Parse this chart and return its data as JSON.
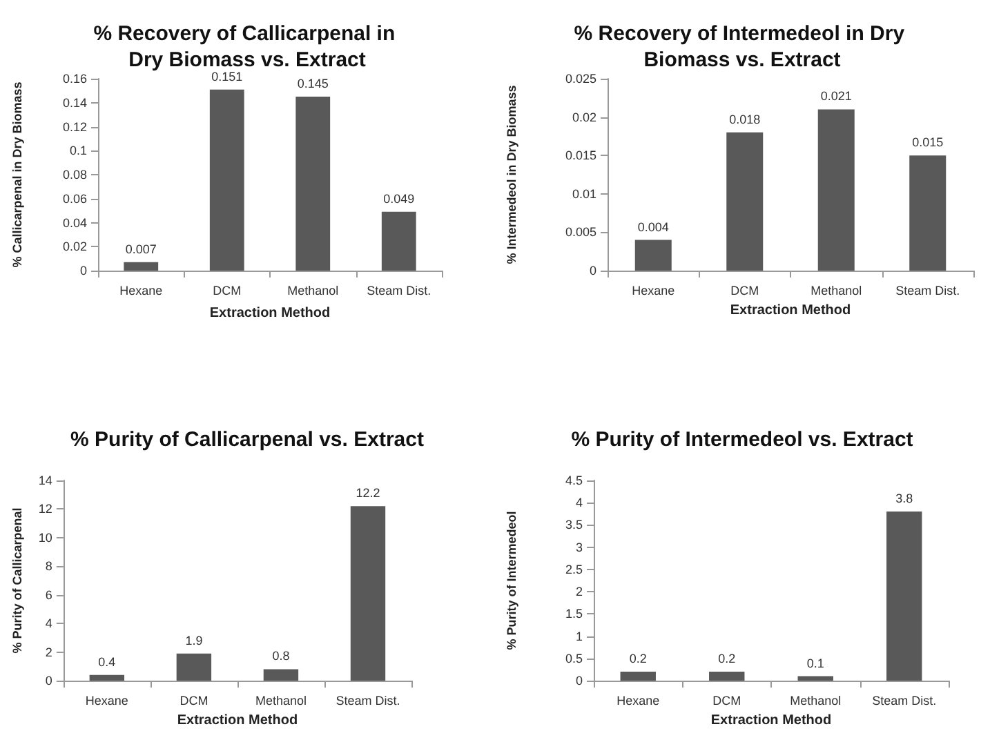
{
  "chart_data": [
    {
      "type": "bar",
      "title": "% Recovery of Callicarpenal in Dry Biomass vs. Extract",
      "xlabel": "Extraction Method",
      "ylabel": "% Callicarpenal in Dry Biomass",
      "categories": [
        "Hexane",
        "DCM",
        "Methanol",
        "Steam Dist."
      ],
      "values": [
        0.007,
        0.151,
        0.145,
        0.049
      ],
      "color": "#595959",
      "ylim": [
        0,
        0.16
      ],
      "yticks": [
        0,
        0.02,
        0.04,
        0.06,
        0.08,
        0.1,
        0.12,
        0.14,
        0.16
      ],
      "data_labels": true,
      "grid": false
    },
    {
      "type": "bar",
      "title": "% Recovery of Intermedeol in Dry Biomass vs. Extract",
      "xlabel": "Extraction Method",
      "ylabel": "% Intermedeol in Dry Biomass",
      "categories": [
        "Hexane",
        "DCM",
        "Methanol",
        "Steam Dist."
      ],
      "values": [
        0.004,
        0.018,
        0.021,
        0.015
      ],
      "color": "#595959",
      "ylim": [
        0,
        0.025
      ],
      "yticks": [
        0,
        0.005,
        0.01,
        0.015,
        0.02,
        0.025
      ],
      "data_labels": true,
      "grid": false
    },
    {
      "type": "bar",
      "title": "% Purity of Callicarpenal vs. Extract",
      "xlabel": "Extraction Method",
      "ylabel": "% Purity of Callicarpenal",
      "categories": [
        "Hexane",
        "DCM",
        "Methanol",
        "Steam Dist."
      ],
      "values": [
        0.4,
        1.9,
        0.8,
        12.2
      ],
      "color": "#595959",
      "ylim": [
        0,
        14
      ],
      "yticks": [
        0,
        2,
        4,
        6,
        8,
        10,
        12,
        14
      ],
      "data_labels": true,
      "grid": false
    },
    {
      "type": "bar",
      "title": "% Purity of Intermedeol vs. Extract",
      "xlabel": "Extraction Method",
      "ylabel": "% Purity of Intermedeol",
      "categories": [
        "Hexane",
        "DCM",
        "Methanol",
        "Steam Dist."
      ],
      "values": [
        0.2,
        0.2,
        0.1,
        3.8
      ],
      "color": "#595959",
      "ylim": [
        0,
        4.5
      ],
      "yticks": [
        0,
        0.5,
        1,
        1.5,
        2,
        2.5,
        3,
        3.5,
        4,
        4.5
      ],
      "data_labels": true,
      "grid": false
    }
  ]
}
